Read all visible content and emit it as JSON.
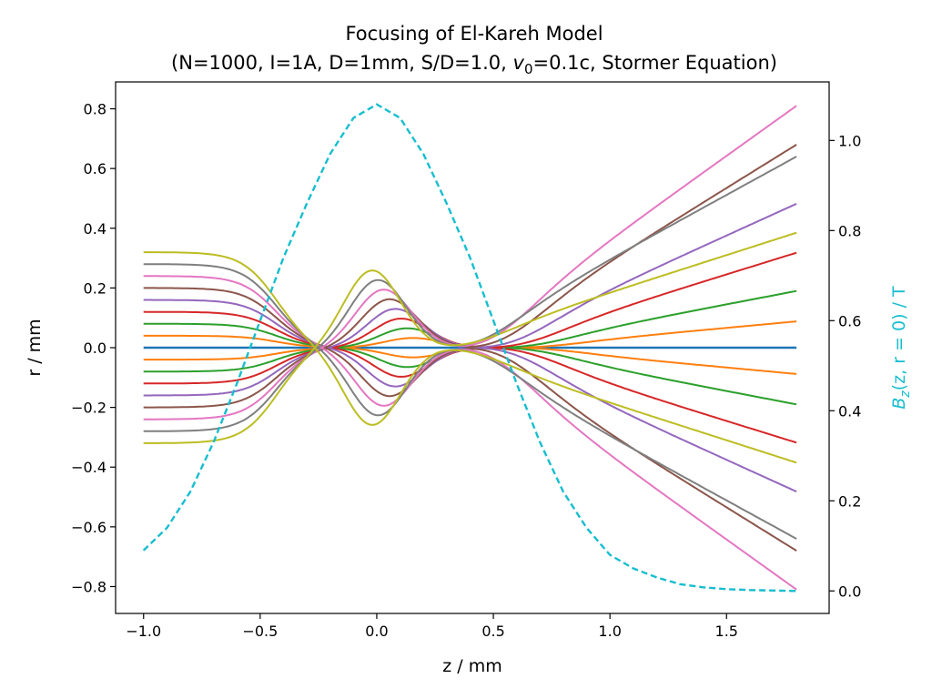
{
  "chart_data": {
    "type": "line",
    "title": "Focusing of El-Kareh Model",
    "subtitle": {
      "prefix": "(N=1000, I=1A, D=1mm, S/D=1.0, ",
      "math_symbol": "v",
      "math_subscript": "0",
      "suffix": "=0.1c, Stormer Equation)"
    },
    "xlabel": "z / mm",
    "ylabel": "r / mm",
    "ylabel_right": {
      "symbol": "B",
      "subscript": "z",
      "args": "(z, r = 0) / T"
    },
    "xlim": [
      -1.12,
      1.94
    ],
    "ylim": [
      -0.89,
      0.89
    ],
    "ylim_right": [
      -0.05,
      1.13
    ],
    "xticks": [
      -1.0,
      -0.5,
      0.0,
      0.5,
      1.0,
      1.5
    ],
    "yticks": [
      -0.8,
      -0.6,
      -0.4,
      -0.2,
      0.0,
      0.2,
      0.4,
      0.6,
      0.8
    ],
    "yticks_right": [
      0.0,
      0.2,
      0.4,
      0.6,
      0.8,
      1.0
    ],
    "xtick_labels": [
      "−1.0",
      "−0.5",
      "0.0",
      "0.5",
      "1.0",
      "1.5"
    ],
    "ytick_labels": [
      "−0.8",
      "−0.6",
      "−0.4",
      "−0.2",
      "0.0",
      "0.2",
      "0.4",
      "0.6",
      "0.8"
    ],
    "ytick_labels_right": [
      "0.0",
      "0.2",
      "0.4",
      "0.6",
      "0.8",
      "1.0"
    ],
    "grid": false,
    "ylabel_right_color": "#17becf",
    "field_curve": {
      "axis": "right",
      "color": "#17becf",
      "style": "dashed",
      "x": [
        -1.0,
        -0.9,
        -0.8,
        -0.7,
        -0.6,
        -0.5,
        -0.4,
        -0.3,
        -0.2,
        -0.1,
        0.0,
        0.1,
        0.2,
        0.3,
        0.4,
        0.5,
        0.6,
        0.7,
        0.8,
        0.9,
        1.0,
        1.1,
        1.2,
        1.3,
        1.4,
        1.5,
        1.6,
        1.7,
        1.8
      ],
      "y": [
        0.09,
        0.14,
        0.22,
        0.33,
        0.46,
        0.6,
        0.74,
        0.86,
        0.97,
        1.05,
        1.08,
        1.05,
        0.97,
        0.86,
        0.74,
        0.6,
        0.46,
        0.33,
        0.22,
        0.14,
        0.08,
        0.05,
        0.03,
        0.015,
        0.008,
        0.004,
        0.002,
        0.001,
        0.0
      ]
    },
    "series": [
      {
        "color": "#1f77b4",
        "r0": 0.0,
        "r_end": 0.0
      },
      {
        "color": "#ff7f0e",
        "r0": 0.04,
        "r_end": -0.088
      },
      {
        "color": "#ff7f0e",
        "r0": -0.04,
        "r_end": 0.088
      },
      {
        "color": "#2ca02c",
        "r0": 0.08,
        "r_end": -0.19
      },
      {
        "color": "#2ca02c",
        "r0": -0.08,
        "r_end": 0.19
      },
      {
        "color": "#d62728",
        "r0": 0.12,
        "r_end": -0.318
      },
      {
        "color": "#d62728",
        "r0": -0.12,
        "r_end": 0.318
      },
      {
        "color": "#9467bd",
        "r0": 0.16,
        "r_end": -0.482
      },
      {
        "color": "#9467bd",
        "r0": -0.16,
        "r_end": 0.482
      },
      {
        "color": "#8c564b",
        "r0": 0.2,
        "r_end": -0.68
      },
      {
        "color": "#8c564b",
        "r0": -0.2,
        "r_end": 0.68
      },
      {
        "color": "#e377c2",
        "r0": 0.24,
        "r_end": -0.81
      },
      {
        "color": "#e377c2",
        "r0": -0.24,
        "r_end": 0.81
      },
      {
        "color": "#7f7f7f",
        "r0": 0.28,
        "r_end": -0.64
      },
      {
        "color": "#7f7f7f",
        "r0": -0.28,
        "r_end": 0.64
      },
      {
        "color": "#bcbd22",
        "r0": 0.32,
        "r_end": -0.385
      },
      {
        "color": "#bcbd22",
        "r0": -0.32,
        "r_end": 0.385
      }
    ]
  }
}
